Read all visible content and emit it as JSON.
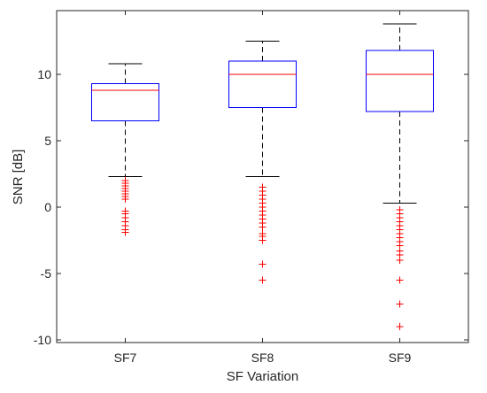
{
  "chart_data": {
    "type": "box",
    "title": "",
    "xlabel": "SF Variation",
    "ylabel": "SNR [dB]",
    "ylim": [
      -10.2,
      14.8
    ],
    "yticks": [
      -10,
      -5,
      0,
      5,
      10
    ],
    "categories": [
      "SF7",
      "SF8",
      "SF9"
    ],
    "grid": false,
    "boxes": [
      {
        "category": "SF7",
        "whisker_low": 2.3,
        "q1": 6.5,
        "median": 8.8,
        "q3": 9.3,
        "whisker_high": 10.8,
        "outliers": [
          2.0,
          1.8,
          1.6,
          1.4,
          1.2,
          1.0,
          0.8,
          0.6,
          -0.3,
          -0.5,
          -0.8,
          -1.1,
          -1.4,
          -1.7,
          -1.9
        ]
      },
      {
        "category": "SF8",
        "whisker_low": 2.3,
        "q1": 7.5,
        "median": 10.0,
        "q3": 11.0,
        "whisker_high": 12.5,
        "outliers": [
          1.5,
          1.2,
          0.9,
          0.6,
          0.3,
          0.0,
          -0.3,
          -0.6,
          -0.9,
          -1.2,
          -1.5,
          -2.0,
          -2.2,
          -2.5,
          -4.3,
          -5.5
        ]
      },
      {
        "category": "SF9",
        "whisker_low": 0.3,
        "q1": 7.2,
        "median": 10.0,
        "q3": 11.8,
        "whisker_high": 13.8,
        "outliers": [
          -0.2,
          -0.5,
          -0.8,
          -1.1,
          -1.4,
          -1.7,
          -2.0,
          -2.3,
          -2.6,
          -2.9,
          -3.3,
          -3.6,
          -4.0,
          -5.5,
          -7.3,
          -9.0
        ]
      }
    ]
  },
  "colors": {
    "box": "#0000ff",
    "median": "#ff0000",
    "outlier": "#ff0000",
    "whisker": "#000000",
    "axis": "#262626"
  }
}
